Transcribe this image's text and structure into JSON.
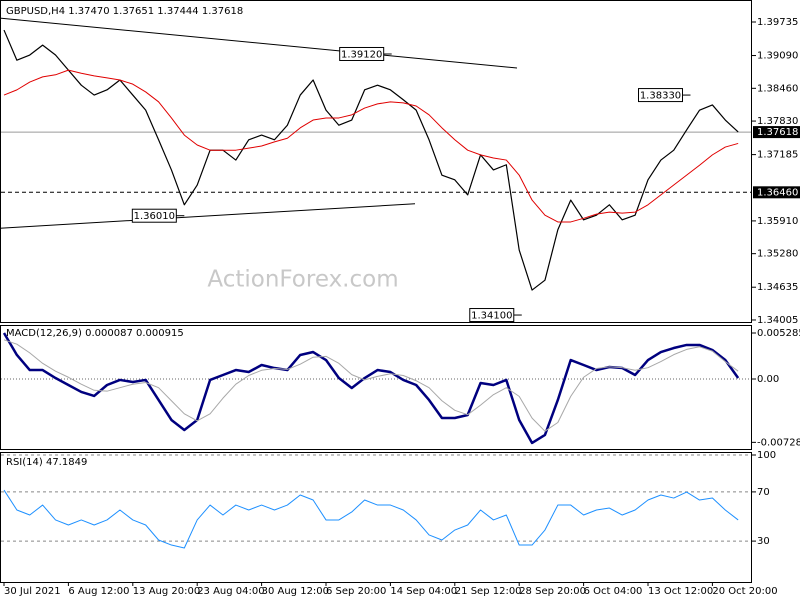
{
  "chart_data": [
    {
      "type": "line",
      "title": "GBPUSD,H4  1.37470 1.37651 1.37444 1.37618",
      "watermark": "ActionForex.com",
      "categories": [
        "30 Jul 2021",
        null,
        null,
        null,
        null,
        "6 Aug 12:00",
        null,
        null,
        null,
        null,
        "13 Aug 20:00",
        null,
        null,
        null,
        null,
        "23 Aug 04:00",
        null,
        null,
        null,
        null,
        "30 Aug 12:00",
        null,
        null,
        null,
        null,
        "6 Sep 20:00",
        null,
        null,
        null,
        null,
        "14 Sep 04:00",
        null,
        null,
        null,
        null,
        "21 Sep 12:00",
        null,
        null,
        null,
        null,
        "28 Sep 20:00",
        null,
        null,
        null,
        null,
        "6 Oct 04:00",
        null,
        null,
        null,
        null,
        "13 Oct 12:00",
        null,
        null,
        null,
        null,
        "20 Oct 20:00",
        null,
        null
      ],
      "series": [
        {
          "color": "#000000",
          "values": [
            1.3958,
            1.39,
            1.391,
            1.3929,
            1.391,
            1.3881,
            1.3852,
            1.3833,
            1.3843,
            1.3862,
            1.3833,
            1.3804,
            1.3747,
            1.3689,
            1.3622,
            1.366,
            1.3727,
            1.3727,
            1.3708,
            1.3747,
            1.3756,
            1.3747,
            1.3775,
            1.3833,
            1.3862,
            1.3804,
            1.3775,
            1.3785,
            1.3843,
            1.3852,
            1.3843,
            1.3824,
            1.3804,
            1.3747,
            1.3679,
            1.367,
            1.3641,
            1.3718,
            1.3689,
            1.3699,
            1.3535,
            1.3458,
            1.3477,
            1.3574,
            1.3631,
            1.3593,
            1.3602,
            1.3622,
            1.3593,
            1.3602,
            1.367,
            1.3708,
            1.3727,
            1.3766,
            1.3804,
            1.3814,
            1.3785,
            1.3762
          ]
        },
        {
          "color": "#e00000",
          "values": [
            1.3833,
            1.3843,
            1.3858,
            1.3868,
            1.3872,
            1.3881,
            1.3875,
            1.387,
            1.3866,
            1.3862,
            1.3854,
            1.3839,
            1.382,
            1.3789,
            1.3756,
            1.3737,
            1.3727,
            1.3727,
            1.3727,
            1.3731,
            1.3735,
            1.3743,
            1.375,
            1.377,
            1.3785,
            1.3789,
            1.3789,
            1.3795,
            1.3808,
            1.3816,
            1.382,
            1.3818,
            1.3812,
            1.3795,
            1.377,
            1.3747,
            1.3727,
            1.3718,
            1.3712,
            1.3708,
            1.3679,
            1.3631,
            1.3602,
            1.3589,
            1.3589,
            1.3596,
            1.3604,
            1.3608,
            1.3606,
            1.3608,
            1.3622,
            1.3641,
            1.366,
            1.3679,
            1.3698,
            1.3718,
            1.3733,
            1.374
          ]
        }
      ],
      "ylim": [
        1.33966,
        1.40062
      ],
      "yticks": [
        1.39735,
        {
          "value": 1.3909,
          "label": "1.39090"
        },
        {
          "value": 1.3846,
          "label": "1.38460"
        },
        {
          "value": 1.3783,
          "label": "1.37830"
        },
        1.37185,
        {
          "value": 1.3591,
          "label": "1.35910"
        },
        {
          "value": 1.3528,
          "label": "1.35280"
        },
        1.34635,
        1.34005
      ],
      "price_line": {
        "value": 1.37618,
        "label": "1.37618"
      },
      "level_line": {
        "value": 1.3646,
        "label": "1.36460"
      },
      "trendlines": [
        {
          "x": [
            -0.31,
            39.83
          ],
          "values": [
            1.3981,
            1.3885
          ]
        },
        {
          "x": [
            -0.31,
            31.91
          ],
          "values": [
            1.3577,
            1.3624
          ]
        }
      ],
      "annotations": [
        {
          "value": 1.3912,
          "label": "1.39120",
          "x": 30.1
        },
        {
          "value": 1.3601,
          "label": "1.36010",
          "x": 14
        },
        {
          "value": 1.3833,
          "label": "1.38330",
          "x": 53.3
        },
        {
          "value": 1.341,
          "label": "1.34100",
          "x": 40.2
        }
      ]
    },
    {
      "type": "line",
      "title": "MACD(12,26,9) 0.000087 0.000915",
      "series": [
        {
          "color": "#00007f",
          "values": [
            0.00529,
            0.00276,
            0.00103,
            0.00103,
            0.00011,
            -0.00069,
            -0.00149,
            -0.00195,
            -0.00069,
            -0.00011,
            -0.00034,
            -0.00011,
            -0.00241,
            -0.00471,
            -0.00586,
            -0.00471,
            -0.00011,
            0.00046,
            0.00103,
            0.0008,
            0.00161,
            0.00126,
            0.00103,
            0.00276,
            0.0031,
            0.00218,
            0.00011,
            -0.00103,
            0.00011,
            0.00103,
            0.0008,
            -0.00011,
            -0.00069,
            -0.00241,
            -0.00448,
            -0.00448,
            -0.00414,
            -0.00046,
            -0.00069,
            -0.00011,
            -0.00471,
            -0.00735,
            -0.00643,
            -0.00241,
            0.00218,
            0.00161,
            0.00103,
            0.00138,
            0.00126,
            0.00046,
            0.00218,
            0.0031,
            0.00356,
            0.00391,
            0.00391,
            0.00333,
            0.00218,
            0.00011
          ]
        },
        {
          "color": "#a8a8a8",
          "values": [
            0.0045,
            0.004,
            0.003,
            0.0018,
            0.0009,
            0.0002,
            -0.0006,
            -0.0013,
            -0.0014,
            -0.001,
            -0.0006,
            -0.0004,
            -0.001,
            -0.0025,
            -0.004,
            -0.0048,
            -0.004,
            -0.0022,
            -0.0006,
            0.0004,
            0.001,
            0.0012,
            0.0011,
            0.0017,
            0.0025,
            0.0026,
            0.0018,
            0.0005,
            -0.0001,
            0.0003,
            0.0006,
            0.0004,
            -0.0002,
            -0.001,
            -0.0025,
            -0.0036,
            -0.0041,
            -0.003,
            -0.0018,
            -0.001,
            -0.002,
            -0.0045,
            -0.006,
            -0.005,
            -0.002,
            0.0002,
            0.0012,
            0.0014,
            0.0013,
            0.001,
            0.0013,
            0.002,
            0.0028,
            0.0034,
            0.0037,
            0.0032,
            0.002,
            0.0009
          ]
        }
      ],
      "ylim": [
        -0.00793,
        0.00609
      ],
      "yticks": [
        0.005285,
        {
          "value": 0,
          "label": "0.00"
        },
        -0.00728
      ],
      "zero_line": true
    },
    {
      "type": "line",
      "title": "RSI(14) 47.1849",
      "series": [
        {
          "color": "#1e90ff",
          "values": [
            71.5,
            55.3,
            51.2,
            59.3,
            47.2,
            43.1,
            47.2,
            43.1,
            47.2,
            55.3,
            47.2,
            43.1,
            30.9,
            26.8,
            24.4,
            47.2,
            59.3,
            51.2,
            59.3,
            55.3,
            59.3,
            55.3,
            59.3,
            67.5,
            63.4,
            47.2,
            47.2,
            53.7,
            63.4,
            59.3,
            59.3,
            55.3,
            47.2,
            35.0,
            30.9,
            39.0,
            43.1,
            55.3,
            47.2,
            51.2,
            26.8,
            26.8,
            39.0,
            59.3,
            59.3,
            51.2,
            55.3,
            56.9,
            51.2,
            55.3,
            63.4,
            67.5,
            65.0,
            69.9,
            63.4,
            65.0,
            55.3,
            47.2
          ]
        }
      ],
      "ylim": [
        0,
        100
      ],
      "yticks": [
        100,
        70,
        30
      ],
      "grid": true
    }
  ]
}
